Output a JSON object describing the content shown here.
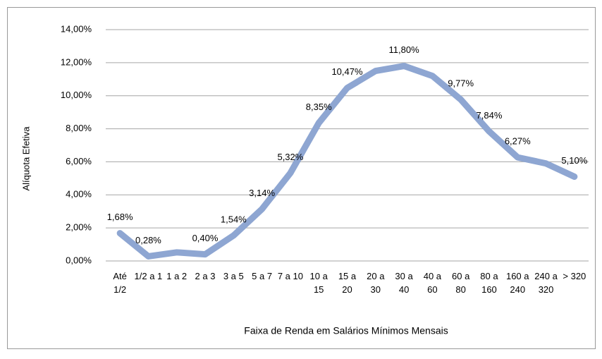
{
  "chart_data": {
    "type": "line",
    "x_label": "Faixa de Renda em Salários Mínimos Mensais",
    "y_label": "Alíquota Efetiva",
    "categories": [
      "Até 1/2",
      "1/2 a 1",
      "1 a 2",
      "2 a 3",
      "3 a 5",
      "5 a 7",
      "7 a 10",
      "10 a 15",
      "15 a 20",
      "20 a 30",
      "30 a 40",
      "40 a 60",
      "60 a 80",
      "80 a 160",
      "160 a 240",
      "240 a 320",
      "> 320"
    ],
    "series": [
      {
        "name": "Alíquota Efetiva",
        "color": "#8ea6d2",
        "values": [
          1.68,
          0.28,
          0.52,
          0.4,
          1.54,
          3.14,
          5.32,
          8.35,
          10.47,
          11.5,
          11.8,
          11.2,
          9.77,
          7.84,
          6.27,
          5.9,
          5.1
        ],
        "value_labels": [
          "1,68%",
          "0,28%",
          null,
          "0,40%",
          "1,54%",
          "3,14%",
          "5,32%",
          "8,35%",
          "10,47%",
          null,
          "11,80%",
          null,
          "9,77%",
          "7,84%",
          "6,27%",
          null,
          "5,10%"
        ]
      }
    ],
    "ylim": [
      0,
      14
    ],
    "yticks": [
      {
        "value": 0,
        "label": "0,00%"
      },
      {
        "value": 2,
        "label": "2,00%"
      },
      {
        "value": 4,
        "label": "4,00%"
      },
      {
        "value": 6,
        "label": "6,00%"
      },
      {
        "value": 8,
        "label": "8,00%"
      },
      {
        "value": 10,
        "label": "10,00%"
      },
      {
        "value": 12,
        "label": "12,00%"
      },
      {
        "value": 14,
        "label": "14,00%"
      }
    ],
    "grid": true
  }
}
